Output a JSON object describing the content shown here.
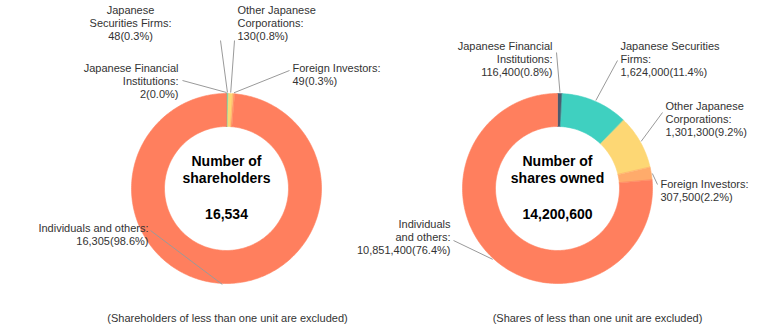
{
  "chart_data": [
    {
      "type": "donut",
      "title": "Number of shareholders",
      "total": {
        "value": 16534,
        "label": "16,534"
      },
      "caption": "(Shareholders of less than one unit are excluded)",
      "categories": [
        "Japanese Financial Institutions:",
        "Japanese Securities Firms:",
        "Other Japanese Corporations:",
        "Foreign Investors:",
        "Individuals and others:"
      ],
      "values": [
        2,
        48,
        130,
        49,
        16305
      ],
      "value_labels": [
        "2(0.0%)",
        "48(0.3%)",
        "130(0.8%)",
        "49(0.3%)",
        "16,305(98.6%)"
      ],
      "colors": [
        "#4d5a6e",
        "#3fd0c0",
        "#fdd774",
        "#ffab6b",
        "#ff7f5e"
      ],
      "data_labels": true
    },
    {
      "type": "donut",
      "title": "Number of shares owned",
      "total": {
        "value": 14200600,
        "label": "14,200,600"
      },
      "caption": "(Shares of less than one unit are excluded)",
      "categories": [
        "Japanese Financial Institutions:",
        "Japanese Securities Firms:",
        "Other Japanese Corporations:",
        "Foreign Investors:",
        "Individuals and others:"
      ],
      "values": [
        116400,
        1624000,
        1301300,
        307500,
        10851400
      ],
      "value_labels": [
        "116,400(0.8%)",
        "1,624,000(11.4%)",
        "1,301,300(9.2%)",
        "307,500(2.2%)",
        "10,851,400(76.4%)"
      ],
      "colors": [
        "#4d5a6e",
        "#3fd0c0",
        "#fdd774",
        "#ffab6b",
        "#ff7f5e"
      ],
      "data_labels": true
    }
  ]
}
